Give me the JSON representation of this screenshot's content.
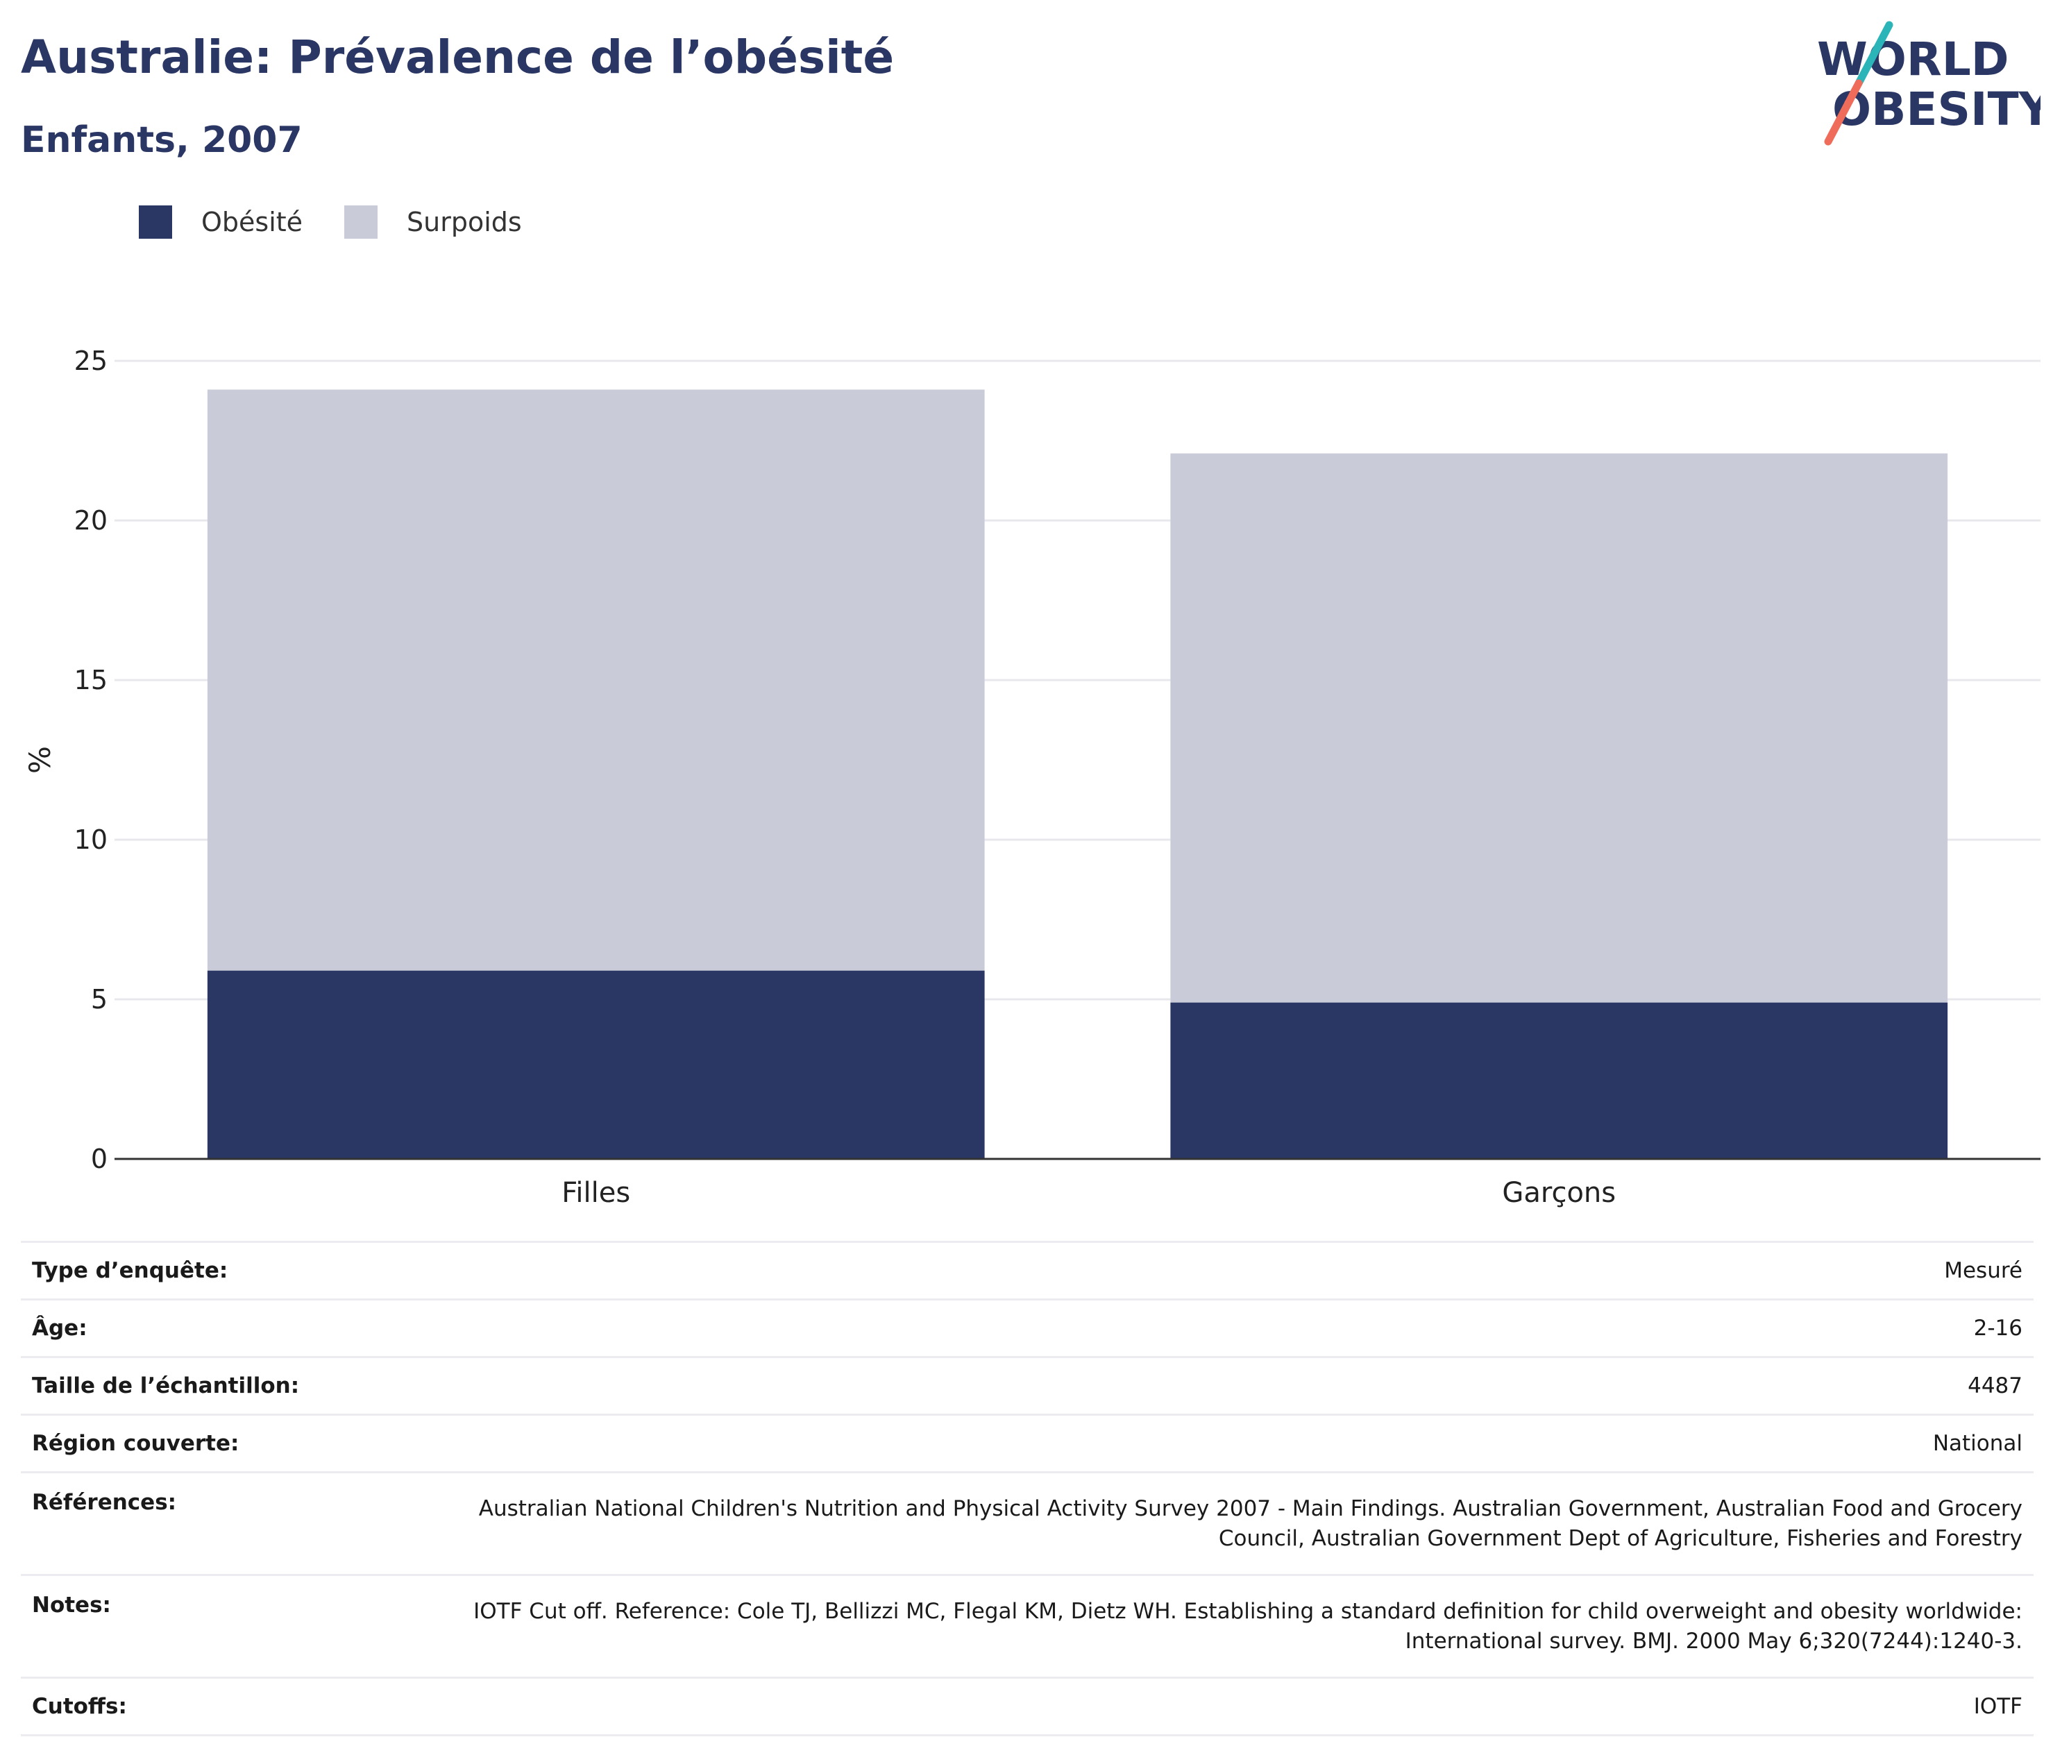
{
  "header": {
    "title": "Australie: Prévalence de l’obésité",
    "subtitle": "Enfants, 2007"
  },
  "logo": {
    "line1": "WORLD",
    "line2": "OBESITY"
  },
  "colors": {
    "obesity": "#2a3663",
    "overweight": "#c9ccd8",
    "title": "#2a3663",
    "logo_teal": "#2bb5b8",
    "logo_coral": "#ef6c5a"
  },
  "chart_data": {
    "type": "bar",
    "stacked": true,
    "categories": [
      "Filles",
      "Garçons"
    ],
    "series": [
      {
        "name": "Obésité",
        "values": [
          5.9,
          4.9
        ],
        "color": "#2a3663"
      },
      {
        "name": "Surpoids",
        "values": [
          18.2,
          17.2
        ],
        "color": "#c9ccd8"
      }
    ],
    "ylabel": "%",
    "ylim": [
      0,
      25
    ],
    "yticks": [
      0,
      5,
      10,
      15,
      20,
      25
    ],
    "grid": true,
    "legend_position": "top-left"
  },
  "info": [
    {
      "label": "Type d’enquête:",
      "value": "Mesuré"
    },
    {
      "label": "Âge:",
      "value": "2-16"
    },
    {
      "label": "Taille de l’échantillon:",
      "value": "4487"
    },
    {
      "label": "Région couverte:",
      "value": "National"
    },
    {
      "label": "Références:",
      "value": "Australian National Children's Nutrition and Physical Activity Survey 2007 - Main Findings. Australian Government, Australian Food and Grocery Council, Australian Government Dept of Agriculture, Fisheries and Forestry"
    },
    {
      "label": "Notes:",
      "value": "IOTF Cut off. Reference: Cole TJ, Bellizzi MC, Flegal KM, Dietz WH. Establishing a standard definition for child overweight and obesity worldwide: International survey. BMJ. 2000 May 6;320(7244):1240-3."
    },
    {
      "label": "Cutoffs:",
      "value": "IOTF"
    }
  ]
}
